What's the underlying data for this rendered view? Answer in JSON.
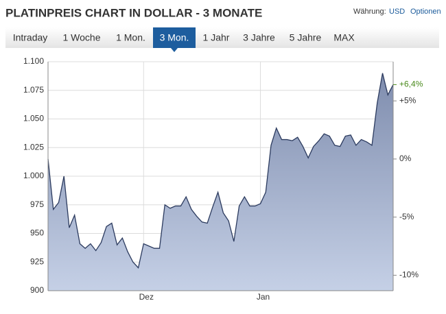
{
  "header": {
    "title": "PLATINPREIS CHART IN DOLLAR - 3 MONATE",
    "currency_label": "Währung:",
    "currency": "USD",
    "options": "Optionen"
  },
  "tabs": [
    "Intraday",
    "1 Woche",
    "1 Mon.",
    "3 Mon.",
    "1 Jahr",
    "3 Jahre",
    "5 Jahre",
    "MAX"
  ],
  "active_tab": 3,
  "chart_data": {
    "type": "area",
    "color": "#2b3a5e",
    "categories": [
      null,
      null,
      null,
      null,
      null,
      null,
      null,
      null,
      null,
      null,
      null,
      null,
      null,
      null,
      null,
      null,
      null,
      null,
      "Dez",
      null,
      null,
      null,
      null,
      null,
      null,
      null,
      null,
      null,
      null,
      null,
      null,
      null,
      null,
      null,
      null,
      null,
      null,
      null,
      null,
      null,
      "Jan",
      null,
      null,
      null,
      null,
      null,
      null,
      null,
      null,
      null,
      null,
      null,
      null,
      null,
      null,
      null,
      null,
      null,
      null,
      null,
      null,
      null,
      null,
      null,
      null,
      null
    ],
    "values": [
      1015,
      971,
      977,
      1000,
      955,
      966,
      941,
      937,
      941,
      935,
      942,
      956,
      959,
      940,
      946,
      934,
      925,
      920,
      941,
      939,
      937,
      937,
      975,
      972,
      974,
      974,
      982,
      971,
      965,
      960,
      959,
      973,
      986,
      968,
      961,
      943,
      974,
      982,
      974,
      974,
      976,
      986,
      1027,
      1042,
      1032,
      1032,
      1031,
      1034,
      1026,
      1016,
      1026,
      1031,
      1037,
      1035,
      1027,
      1026,
      1035,
      1036,
      1027,
      1032,
      1030,
      1027,
      1064,
      1090,
      1071,
      1080
    ],
    "ylim": [
      900,
      1100
    ],
    "yticks": [
      {
        "value": 900,
        "label": "900"
      },
      {
        "value": 925,
        "label": "925"
      },
      {
        "value": 950,
        "label": "950"
      },
      {
        "value": 975,
        "label": "975"
      },
      {
        "value": 1000,
        "label": "1.000"
      },
      {
        "value": 1025,
        "label": "1.025"
      },
      {
        "value": 1050,
        "label": "1.050"
      },
      {
        "value": 1075,
        "label": "1.075"
      },
      {
        "value": 1100,
        "label": "1.100"
      }
    ],
    "y2lim": [
      -11.33,
      8.37
    ],
    "y2ticks": [
      {
        "value": 5,
        "label": "+5%"
      },
      {
        "value": 0,
        "label": "0%"
      },
      {
        "value": -5,
        "label": "-5%"
      },
      {
        "value": -10,
        "label": "-10%"
      }
    ],
    "last_change": {
      "value": 6.4,
      "label": "+6,4%",
      "color": "#4a8a1c"
    },
    "grid": true
  }
}
